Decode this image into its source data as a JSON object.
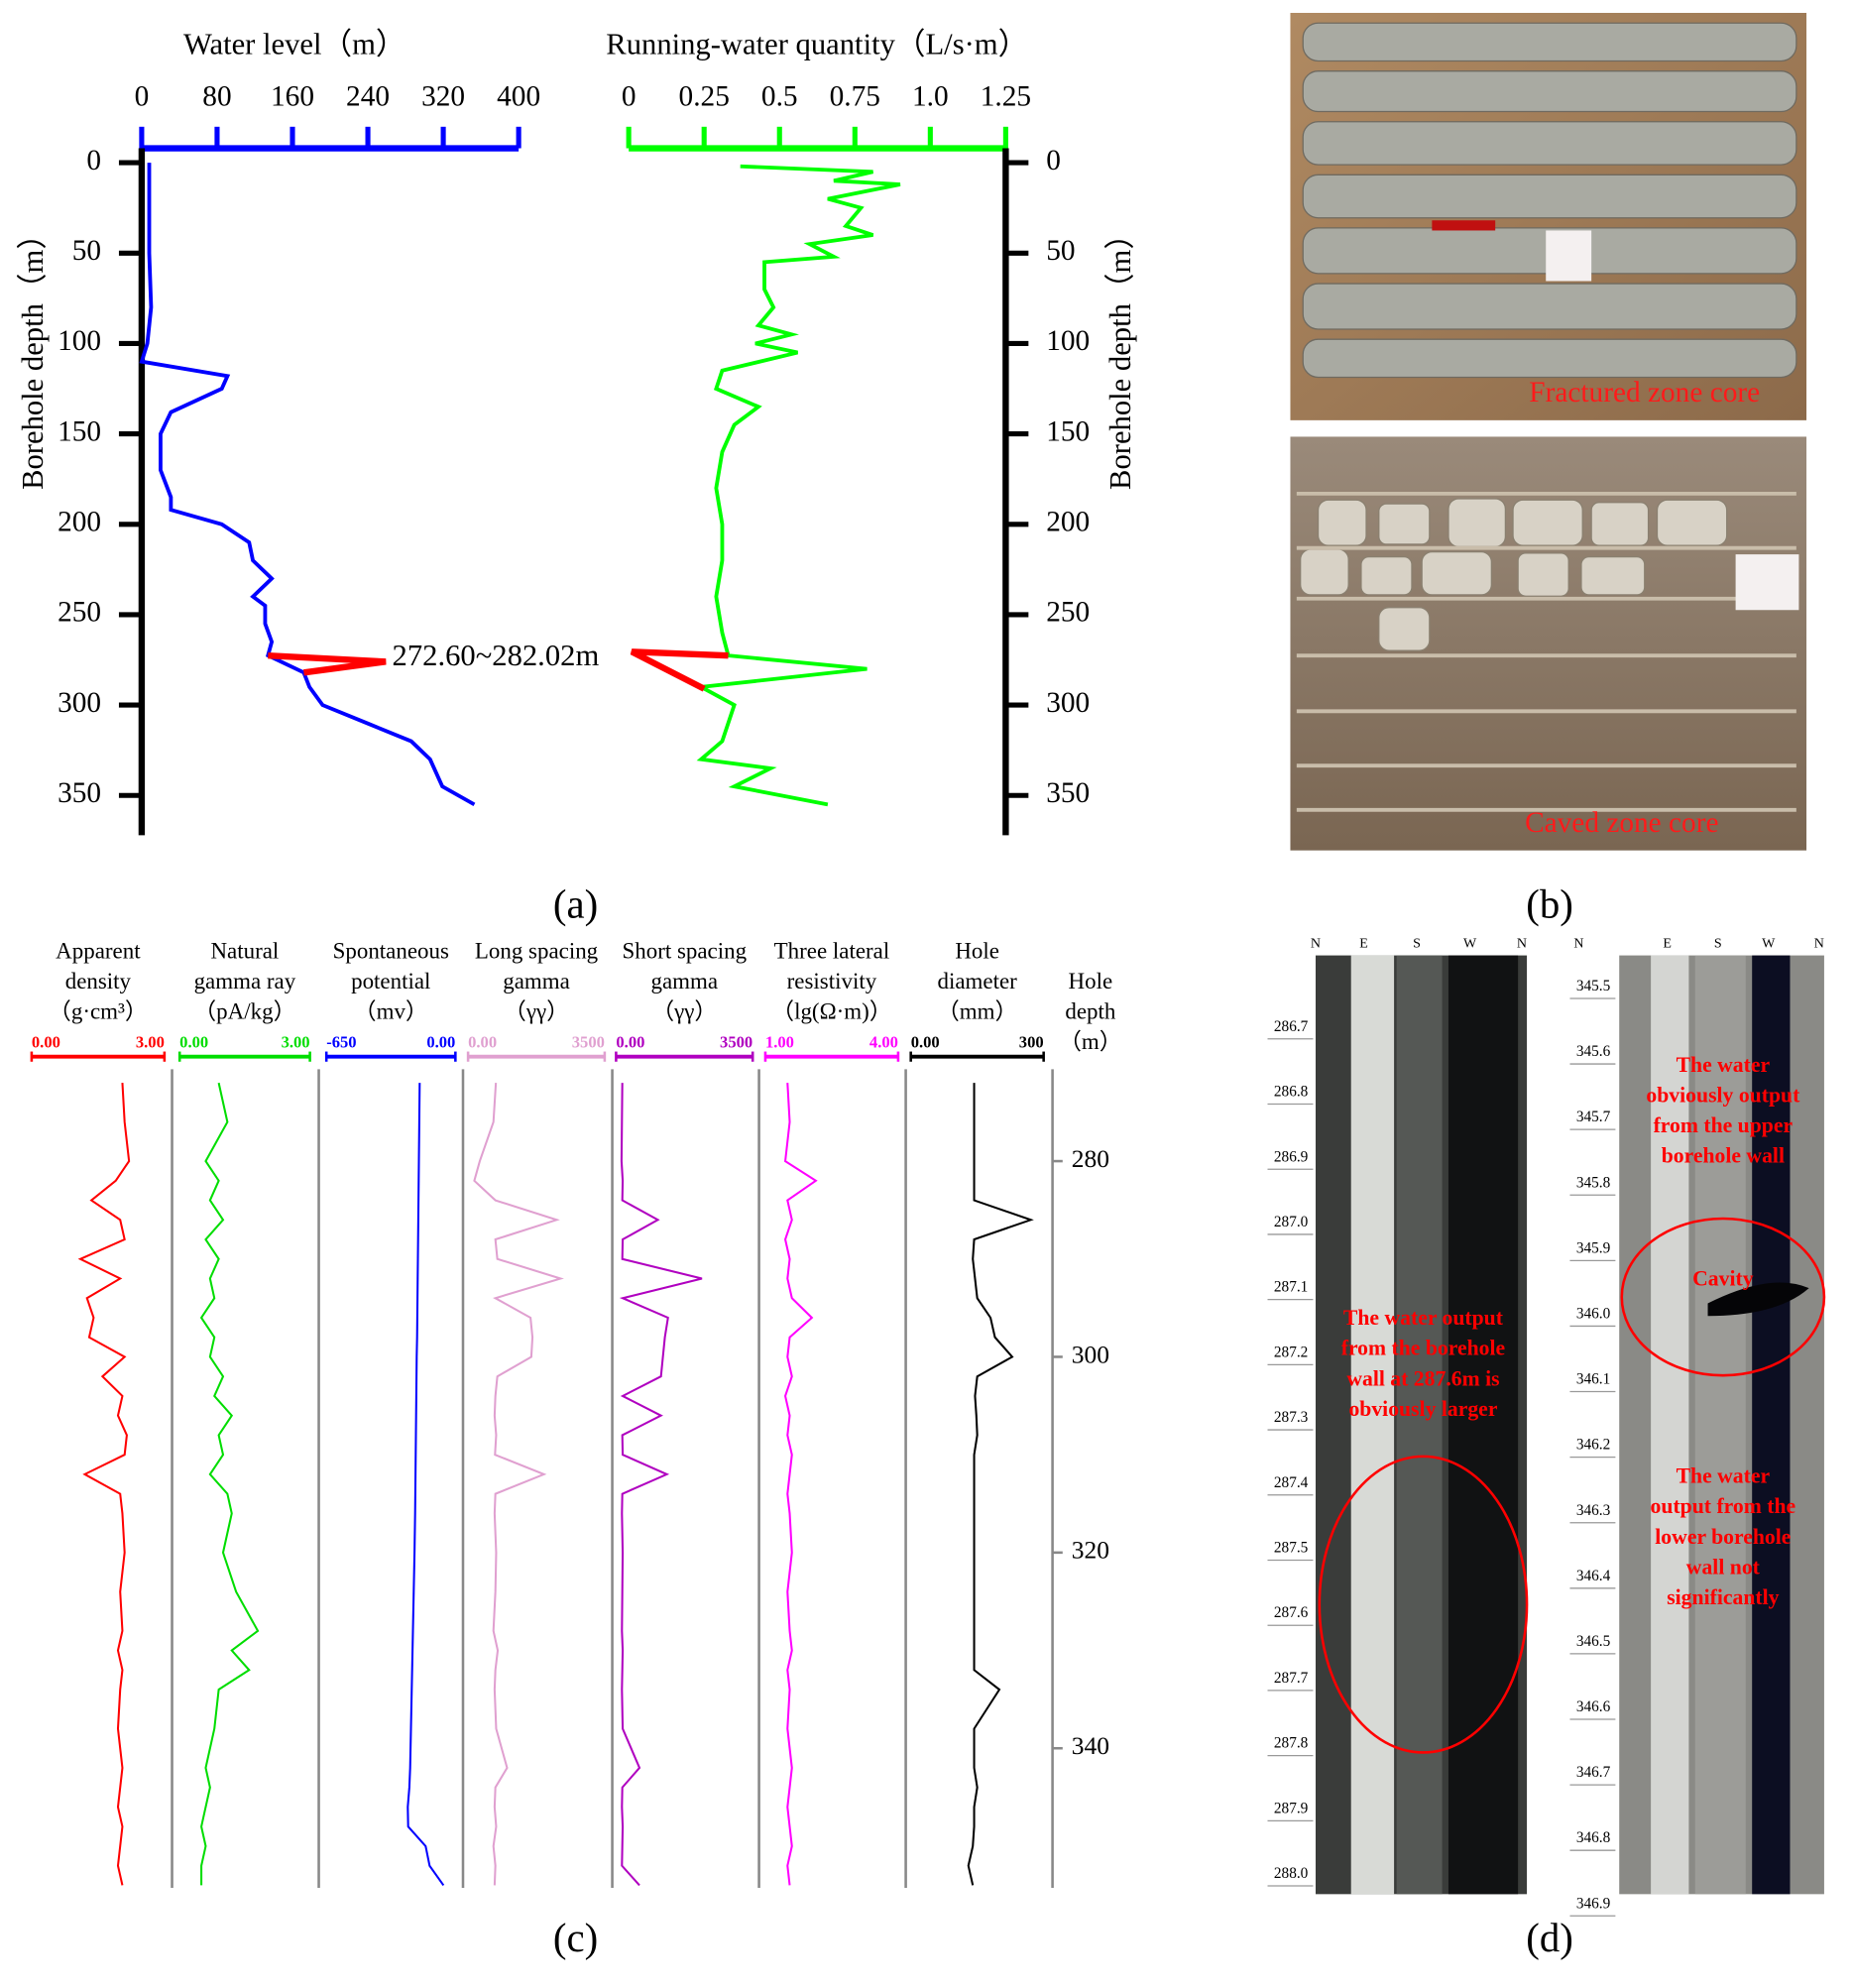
{
  "chart_data": [
    {
      "type": "line",
      "title": "Water level（m）",
      "ylabel": "Borehole depth（m）",
      "axis_color": "#0000ff",
      "xlim": [
        0,
        400
      ],
      "xticks": [
        0,
        80,
        160,
        240,
        320,
        400
      ],
      "ylim": [
        -8,
        372
      ],
      "yticks": [
        0,
        50,
        100,
        150,
        200,
        250,
        300,
        350
      ],
      "series": [
        {
          "color": "#0000ff",
          "depth": [
            0,
            10,
            30,
            50,
            80,
            100,
            110,
            118,
            125,
            138,
            150,
            170,
            185,
            192,
            200,
            210,
            220,
            230,
            240,
            245,
            255,
            265,
            272.6,
            282,
            290,
            300,
            310,
            320,
            330,
            345,
            355
          ],
          "values": [
            8,
            8,
            8,
            8,
            10,
            6,
            0,
            91,
            85,
            31,
            20,
            20,
            31,
            31,
            85,
            114,
            118,
            138,
            118,
            131,
            131,
            138,
            134,
            172,
            178,
            192,
            239,
            286,
            306,
            319,
            353
          ]
        }
      ],
      "highlight": {
        "color": "#ff0000",
        "depth": [
          272.6,
          276,
          282.02
        ],
        "values": [
          134,
          259,
          172
        ]
      },
      "annotation": "272.60~282.02m"
    },
    {
      "type": "line",
      "title": "Running-water quantity（L/s·m）",
      "ylabel": "Borehole depth（m）",
      "axis_color": "#00ff00",
      "xlim": [
        0,
        1.25
      ],
      "xticks": [
        0,
        0.25,
        0.5,
        0.75,
        {
          "value": 1,
          "label": "1.0"
        },
        1.25
      ],
      "ylim": [
        -8,
        372
      ],
      "yticks": [
        0,
        50,
        100,
        150,
        200,
        250,
        300,
        350
      ],
      "series": [
        {
          "color": "#00ff00",
          "depth": [
            2,
            5,
            10,
            12,
            20,
            25,
            35,
            40,
            45,
            52,
            55,
            70,
            80,
            90,
            95,
            100,
            105,
            115,
            125,
            135,
            145,
            160,
            180,
            200,
            220,
            240,
            260,
            272.6,
            280,
            290,
            300,
            320,
            330,
            335,
            345,
            355
          ],
          "values": [
            0.37,
            0.81,
            0.68,
            0.9,
            0.66,
            0.77,
            0.72,
            0.81,
            0.6,
            0.68,
            0.45,
            0.45,
            0.48,
            0.43,
            0.54,
            0.42,
            0.56,
            0.31,
            0.29,
            0.43,
            0.35,
            0.31,
            0.29,
            0.31,
            0.31,
            0.29,
            0.31,
            0.33,
            0.79,
            0.24,
            0.35,
            0.31,
            0.24,
            0.47,
            0.35,
            0.66
          ]
        }
      ],
      "highlight": {
        "color": "#ff0000",
        "depth": [
          272.6,
          270.5,
          291
        ],
        "values": [
          0.33,
          0.01,
          0.25
        ]
      }
    },
    {
      "type": "well_log",
      "depth_label": [
        "Hole",
        "depth",
        "（m）"
      ],
      "ylim": [
        271,
        354
      ],
      "yticks": [
        280,
        300,
        320,
        340
      ],
      "depths": [
        272,
        276,
        280,
        282,
        284,
        286,
        288,
        290,
        292,
        294,
        296,
        298,
        300,
        302,
        304,
        306,
        308,
        310,
        312,
        314,
        316,
        320,
        324,
        328,
        330,
        332,
        334,
        338,
        342,
        344,
        346,
        348,
        350,
        352,
        354
      ],
      "tracks": [
        {
          "name": [
            "Apparent",
            "density",
            "（g·cm³）"
          ],
          "color": "#ff0000",
          "xlim": [
            0,
            3
          ],
          "xticks": [
            {
              "value": 0,
              "label": "0.00"
            },
            {
              "value": 3,
              "label": "3.00"
            }
          ],
          "values": [
            2.05,
            2.1,
            2.2,
            1.9,
            1.35,
            2.0,
            2.1,
            1.1,
            2.0,
            1.25,
            1.4,
            1.3,
            2.1,
            1.6,
            2.05,
            1.95,
            2.15,
            2.1,
            1.2,
            2.0,
            2.05,
            2.1,
            2.0,
            2.05,
            1.95,
            2.05,
            2.0,
            1.95,
            2.05,
            2.0,
            1.95,
            2.05,
            2.0,
            1.95,
            2.05
          ]
        },
        {
          "name": [
            "Natural",
            "gamma ray",
            "（pA/kg）"
          ],
          "color": "#00dd00",
          "xlim": [
            0,
            3
          ],
          "xticks": [
            {
              "value": 0,
              "label": "0.00"
            },
            {
              "value": 3,
              "label": "3.00"
            }
          ],
          "values": [
            0.9,
            1.1,
            0.6,
            0.9,
            0.7,
            1.0,
            0.6,
            0.9,
            0.7,
            0.8,
            0.5,
            0.8,
            0.7,
            1.0,
            0.8,
            1.2,
            0.9,
            1.0,
            0.7,
            1.1,
            1.2,
            1.0,
            1.3,
            1.8,
            1.2,
            1.6,
            0.9,
            0.8,
            0.6,
            0.7,
            0.6,
            0.5,
            0.6,
            0.5,
            0.5
          ]
        },
        {
          "name": [
            "Spontaneous",
            "potential",
            "（mv）"
          ],
          "color": "#0000ff",
          "xlim": [
            -650,
            0
          ],
          "xticks": [
            -650,
            {
              "value": 0,
              "label": "0.00"
            }
          ],
          "values": [
            -180,
            -182,
            -184,
            -185,
            -186,
            -187,
            -188,
            -189,
            -190,
            -191,
            -192,
            -193,
            -195,
            -196,
            -197,
            -198,
            -199,
            -200,
            -201,
            -202,
            -203,
            -206,
            -210,
            -214,
            -216,
            -218,
            -220,
            -224,
            -228,
            -232,
            -240,
            -238,
            -150,
            -130,
            -60
          ]
        },
        {
          "name": [
            "Long spacing",
            "gamma",
            "（γγ）"
          ],
          "color": "#e0a0d0",
          "xlim": [
            0,
            3500
          ],
          "xticks": [
            {
              "value": 0,
              "label": "0.00"
            },
            3500
          ],
          "values": [
            713,
            650,
            300,
            160,
            700,
            2270,
            700,
            750,
            2370,
            700,
            1600,
            1650,
            1620,
            750,
            700,
            680,
            720,
            690,
            1944,
            700,
            680,
            720,
            700,
            650,
            760,
            700,
            680,
            720,
            1000,
            700,
            680,
            720,
            650,
            700,
            680
          ]
        },
        {
          "name": [
            "Short spacing",
            "gamma",
            "（γγ）"
          ],
          "color": "#b000c0",
          "xlim": [
            0,
            3500
          ],
          "xticks": [
            {
              "value": 0,
              "label": "0.00"
            },
            3500
          ],
          "values": [
            160,
            150,
            140,
            170,
            160,
            1070,
            170,
            160,
            2200,
            170,
            1330,
            1250,
            1200,
            1150,
            170,
            1150,
            160,
            170,
            1300,
            160,
            150,
            170,
            160,
            150,
            170,
            160,
            150,
            170,
            600,
            160,
            150,
            170,
            160,
            150,
            600
          ]
        },
        {
          "name": [
            "Three lateral",
            "resistivity",
            "（lg(Ω·m)）"
          ],
          "color": "#ff00ff",
          "xlim": [
            1,
            4
          ],
          "xticks": [
            {
              "value": 1,
              "label": "1.00"
            },
            {
              "value": 4,
              "label": "4.00"
            }
          ],
          "values": [
            1.5,
            1.55,
            1.45,
            2.14,
            1.5,
            1.6,
            1.45,
            1.55,
            1.5,
            1.6,
            2.05,
            1.55,
            1.5,
            1.6,
            1.45,
            1.55,
            1.5,
            1.6,
            1.55,
            1.5,
            1.55,
            1.6,
            1.5,
            1.55,
            1.6,
            1.5,
            1.55,
            1.5,
            1.6,
            1.55,
            1.5,
            1.55,
            1.6,
            1.5,
            1.55
          ]
        },
        {
          "name": [
            "Hole",
            "diameter",
            "（mm）"
          ],
          "color": "#000000",
          "xlim": [
            0,
            300
          ],
          "xticks": [
            {
              "value": 0,
              "label": "0.00"
            },
            300
          ],
          "values": [
            143,
            143,
            143,
            143,
            143,
            271,
            143,
            140,
            145,
            150,
            180,
            190,
            229,
            150,
            145,
            148,
            150,
            143,
            143,
            143,
            143,
            143,
            143,
            143,
            143,
            143,
            200,
            143,
            143,
            150,
            143,
            143,
            140,
            130,
            140
          ]
        }
      ]
    }
  ],
  "panels": [
    "(a)",
    "(b)",
    "(c)",
    "(d)"
  ],
  "photos": [
    {
      "caption": "Fractured zone core"
    },
    {
      "caption": "Caved zone core"
    }
  ],
  "borehole_images": [
    {
      "compass": [
        "N",
        "E",
        "S",
        "W",
        "N"
      ],
      "depths": [
        "286.7",
        "286.8",
        "286.9",
        "287.0",
        "287.1",
        "287.2",
        "287.3",
        "287.4",
        "287.5",
        "287.6",
        "287.7",
        "287.8",
        "287.9",
        "288.0"
      ],
      "annotations": [
        {
          "lines": [
            "The water output",
            "from the borehole",
            "wall at 287.6m is",
            "obviously larger"
          ]
        }
      ]
    },
    {
      "compass": [
        "N",
        "E",
        "S",
        "W",
        "N"
      ],
      "depths": [
        "345.5",
        "345.6",
        "345.7",
        "345.8",
        "345.9",
        "346.0",
        "346.1",
        "346.2",
        "346.3",
        "346.4",
        "346.5",
        "346.6",
        "346.7",
        "346.8",
        "346.9"
      ],
      "annotations": [
        {
          "lines": [
            "The water",
            "obviously output",
            "from the upper",
            "borehole wall"
          ]
        },
        {
          "lines": [
            "Cavity"
          ]
        },
        {
          "lines": [
            "The water",
            "output from the",
            "lower borehole",
            "wall not",
            "significantly"
          ]
        }
      ]
    }
  ]
}
